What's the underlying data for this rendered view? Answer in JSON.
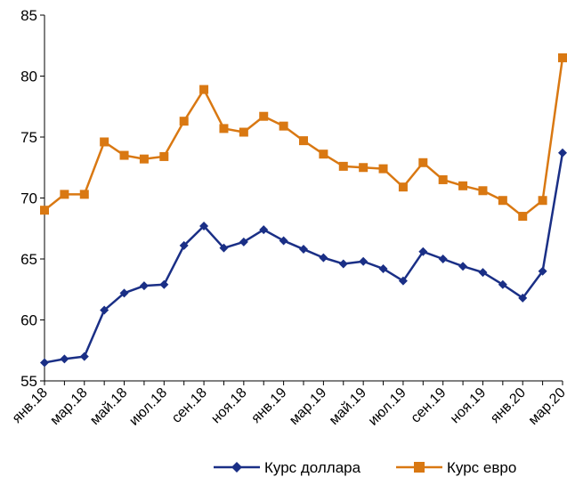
{
  "chart_data": {
    "type": "line",
    "title": "",
    "xlabel": "",
    "ylabel": "",
    "ylim": [
      55,
      85
    ],
    "yticks": [
      55,
      60,
      65,
      70,
      75,
      80,
      85
    ],
    "grid": false,
    "legend_position": "bottom-right",
    "x_tick_labels": [
      "янв.18",
      "мар.18",
      "май.18",
      "июл.18",
      "сен.18",
      "ноя.18",
      "янв.19",
      "мар.19",
      "май.19",
      "июл.19",
      "сен.19",
      "ноя.19",
      "янв.20",
      "мар.20"
    ],
    "series": [
      {
        "name": "Курс доллара",
        "color": "#1a2f86",
        "marker": "diamond",
        "values": [
          56.5,
          56.8,
          57.0,
          60.8,
          62.2,
          62.8,
          62.9,
          66.1,
          67.7,
          65.9,
          66.4,
          67.4,
          66.5,
          65.8,
          65.1,
          64.6,
          64.8,
          64.2,
          63.2,
          65.6,
          65.0,
          64.4,
          63.9,
          62.9,
          61.8,
          64.0,
          73.7
        ]
      },
      {
        "name": "Курс евро",
        "color": "#d97812",
        "marker": "square",
        "values": [
          69.0,
          70.3,
          70.3,
          74.6,
          73.5,
          73.2,
          73.4,
          76.3,
          78.9,
          75.7,
          75.4,
          76.7,
          75.9,
          74.7,
          73.6,
          72.6,
          72.5,
          72.4,
          70.9,
          72.9,
          71.5,
          71.0,
          70.6,
          69.8,
          68.5,
          69.8,
          81.5
        ]
      }
    ]
  }
}
